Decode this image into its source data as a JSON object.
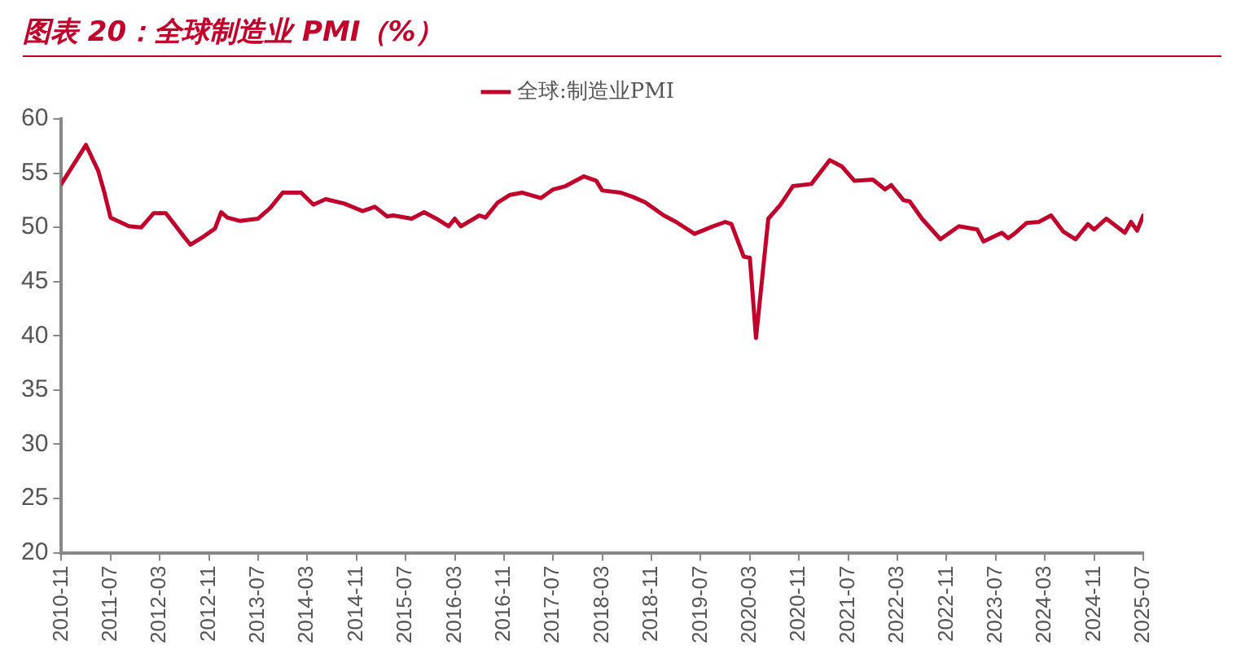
{
  "chart_data": {
    "type": "line",
    "title": "图表 20：全球制造业 PMI（%）",
    "legend": "top",
    "x": [
      "2010-11",
      "2011-03",
      "2011-05",
      "2011-06",
      "2011-07",
      "2011-10",
      "2011-12",
      "2012-02",
      "2012-04",
      "2012-07",
      "2012-08",
      "2012-10",
      "2012-12",
      "2013-01",
      "2013-02",
      "2013-04",
      "2013-07",
      "2013-09",
      "2013-11",
      "2014-02",
      "2014-04",
      "2014-06",
      "2014-09",
      "2014-12",
      "2015-02",
      "2015-04",
      "2015-05",
      "2015-08",
      "2015-10",
      "2015-12",
      "2016-02",
      "2016-03",
      "2016-04",
      "2016-07",
      "2016-08",
      "2016-10",
      "2016-12",
      "2017-02",
      "2017-05",
      "2017-07",
      "2017-09",
      "2017-12",
      "2018-02",
      "2018-03",
      "2018-06",
      "2018-08",
      "2018-10",
      "2019-01",
      "2019-03",
      "2019-06",
      "2019-09",
      "2019-11",
      "2019-12",
      "2020-02",
      "2020-03",
      "2020-04",
      "2020-05",
      "2020-06",
      "2020-08",
      "2020-10",
      "2021-01",
      "2021-04",
      "2021-06",
      "2021-08",
      "2021-11",
      "2022-01",
      "2022-02",
      "2022-04",
      "2022-05",
      "2022-07",
      "2022-10",
      "2023-01",
      "2023-04",
      "2023-05",
      "2023-08",
      "2023-09",
      "2023-10",
      "2023-12",
      "2024-02",
      "2024-04",
      "2024-06",
      "2024-08",
      "2024-10",
      "2024-11",
      "2025-01",
      "2025-04",
      "2025-05",
      "2025-06",
      "2025-07"
    ],
    "series": [
      {
        "name": "全球:制造业PMI",
        "color": "#c0002a",
        "values": [
          54.0,
          57.6,
          55.2,
          53.2,
          50.9,
          50.1,
          50.0,
          51.3,
          51.3,
          49.1,
          48.4,
          49.1,
          49.9,
          51.4,
          50.9,
          50.6,
          50.8,
          51.8,
          53.2,
          53.2,
          52.1,
          52.6,
          52.2,
          51.5,
          51.9,
          51.0,
          51.1,
          50.8,
          51.4,
          50.8,
          50.1,
          50.8,
          50.1,
          51.1,
          50.9,
          52.3,
          53.0,
          53.2,
          52.7,
          53.5,
          53.8,
          54.7,
          54.3,
          53.4,
          53.2,
          52.8,
          52.3,
          51.1,
          50.5,
          49.4,
          50.1,
          50.5,
          50.3,
          47.3,
          47.2,
          39.8,
          45.3,
          50.8,
          52.1,
          53.8,
          54.0,
          56.2,
          55.6,
          54.3,
          54.4,
          53.5,
          53.9,
          52.5,
          52.4,
          50.8,
          48.9,
          50.1,
          49.8,
          48.7,
          49.5,
          49.0,
          49.4,
          50.4,
          50.5,
          51.1,
          49.6,
          48.9,
          50.3,
          49.8,
          50.8,
          49.5,
          50.5,
          49.7,
          51.1
        ]
      }
    ],
    "xlim": [
      "2010-11",
      "2025-07"
    ],
    "xticks": [
      "2010-11",
      "2011-07",
      "2012-03",
      "2012-11",
      "2013-07",
      "2014-03",
      "2014-11",
      "2015-07",
      "2016-03",
      "2016-11",
      "2017-07",
      "2018-03",
      "2018-11",
      "2019-07",
      "2020-03",
      "2020-11",
      "2021-07",
      "2022-03",
      "2022-11",
      "2023-07",
      "2024-03",
      "2024-11",
      "2025-07"
    ],
    "ylim": [
      20,
      60
    ],
    "yticks": [
      20,
      25,
      30,
      35,
      40,
      45,
      50,
      55,
      60
    ],
    "grid": false,
    "marker": "none",
    "line_style": "solid"
  }
}
